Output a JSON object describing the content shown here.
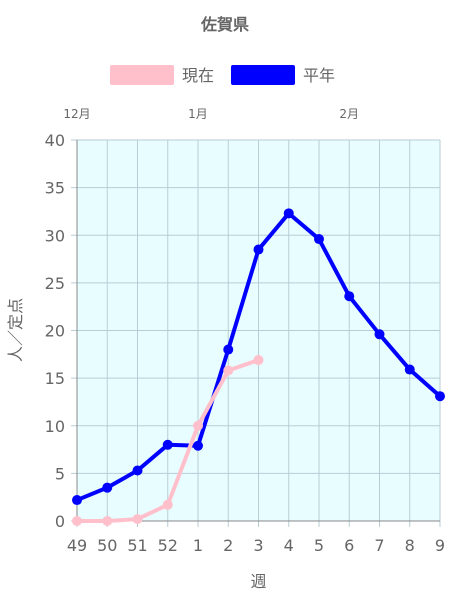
{
  "chart_data": {
    "type": "line",
    "title": "佐賀県",
    "xlabel": "週",
    "ylabel": "人／定点",
    "categories": [
      "49",
      "50",
      "51",
      "52",
      "1",
      "2",
      "3",
      "4",
      "5",
      "6",
      "7",
      "8",
      "9"
    ],
    "month_labels": [
      {
        "label": "12月",
        "at_category": "49"
      },
      {
        "label": "1月",
        "at_category": "1"
      },
      {
        "label": "2月",
        "at_category": "6"
      }
    ],
    "ylim": [
      0,
      40
    ],
    "yticks": [
      0,
      5,
      10,
      15,
      20,
      25,
      30,
      35,
      40
    ],
    "grid": true,
    "legend_position": "top",
    "plot_background": "#e8fdff",
    "series": [
      {
        "name": "現在",
        "color": "#ffc0cb",
        "values": [
          0,
          0,
          0.2,
          1.7,
          10,
          15.8,
          16.9,
          null,
          null,
          null,
          null,
          null,
          null
        ]
      },
      {
        "name": "平年",
        "color": "#0000ff",
        "values": [
          2.2,
          3.5,
          5.3,
          8,
          7.9,
          18,
          28.5,
          32.3,
          29.6,
          23.6,
          19.6,
          15.9,
          13.1
        ]
      }
    ]
  }
}
